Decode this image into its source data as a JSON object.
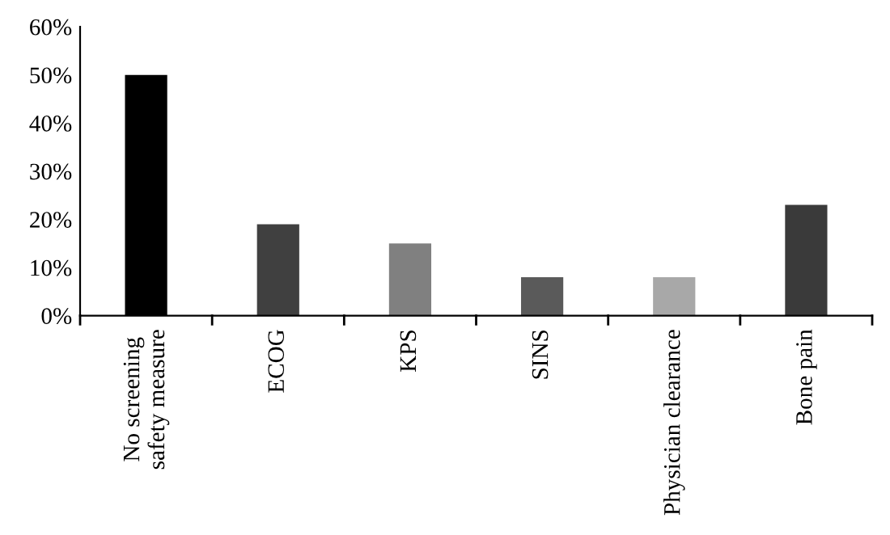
{
  "chart_data": {
    "type": "bar",
    "categories": [
      "No screening safety measure",
      "ECOG",
      "KPS",
      "SINS",
      "Physician clearance",
      "Bone pain"
    ],
    "values": [
      50,
      19,
      15,
      8,
      8,
      23
    ],
    "colors": [
      "#000000",
      "#404040",
      "#808080",
      "#5a5a5a",
      "#a8a8a8",
      "#3a3a3a"
    ],
    "ylim": [
      0,
      60
    ],
    "yticks": [
      {
        "value": 0,
        "label": "0%"
      },
      {
        "value": 10,
        "label": "10%"
      },
      {
        "value": 20,
        "label": "20%"
      },
      {
        "value": 30,
        "label": "30%"
      },
      {
        "value": 40,
        "label": "40%"
      },
      {
        "value": 50,
        "label": "50%"
      },
      {
        "value": 60,
        "label": "60%"
      }
    ],
    "grid": false,
    "legend": false
  }
}
